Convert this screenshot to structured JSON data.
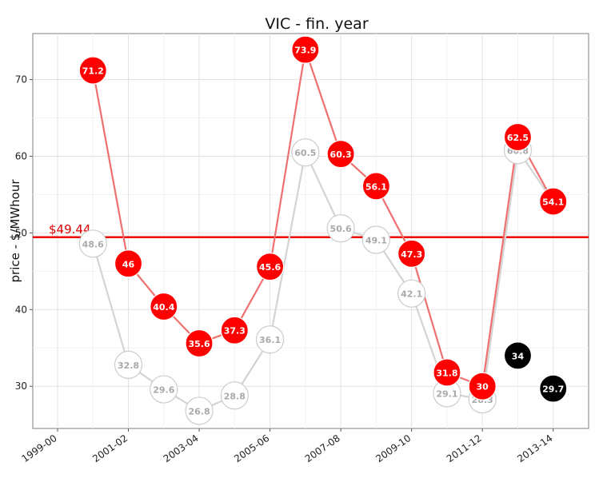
{
  "chart_data": {
    "type": "line",
    "title": "VIC - fin. year",
    "xlabel": "",
    "ylabel": "price - $/MWhour",
    "ylim": [
      24.5,
      76
    ],
    "x_tick_labels": [
      "1999-00",
      "2001-02",
      "2003-04",
      "2005-06",
      "2007-08",
      "2009-10",
      "2011-12",
      "2013-14"
    ],
    "x_tick_positions": [
      0,
      2,
      4,
      6,
      8,
      10,
      12,
      14
    ],
    "y_ticks": [
      30,
      40,
      50,
      60,
      70
    ],
    "x_range": [
      -0.7,
      15
    ],
    "grid": true,
    "reference_line": {
      "value": 49.44,
      "label": "$49.44",
      "color": "#ee0000"
    },
    "series": [
      {
        "style": "grey-outline",
        "line_color": "#d4d4d4",
        "x": [
          1,
          2,
          3,
          4,
          5,
          6,
          7,
          8,
          9,
          10,
          11,
          12,
          13,
          14
        ],
        "values": [
          48.6,
          32.8,
          29.6,
          26.8,
          28.8,
          36.1,
          60.5,
          50.6,
          49.1,
          42.1,
          29.1,
          28.3,
          60.8,
          54.1
        ],
        "labels": [
          "48.6",
          "32.8",
          "29.6",
          "26.8",
          "28.8",
          "36.1",
          "60.5",
          "50.6",
          "49.1",
          "42.1",
          "29.1",
          "28.3",
          "60.8",
          ""
        ]
      },
      {
        "style": "red-filled",
        "line_color": "#f07070",
        "x": [
          1,
          2,
          3,
          4,
          5,
          6,
          7,
          8,
          9,
          10,
          11,
          12,
          13,
          14
        ],
        "values": [
          71.2,
          46,
          40.4,
          35.6,
          37.3,
          45.6,
          73.9,
          60.3,
          56.1,
          47.3,
          31.8,
          30,
          62.5,
          54.1
        ],
        "labels": [
          "71.2",
          "46",
          "40.4",
          "35.6",
          "37.3",
          "45.6",
          "73.9",
          "60.3",
          "56.1",
          "47.3",
          "31.8",
          "30",
          "62.5",
          "54.1"
        ]
      },
      {
        "style": "black-filled",
        "line_color": "none",
        "x": [
          13,
          14
        ],
        "values": [
          34,
          29.7
        ],
        "labels": [
          "34",
          "29.7"
        ]
      }
    ]
  }
}
